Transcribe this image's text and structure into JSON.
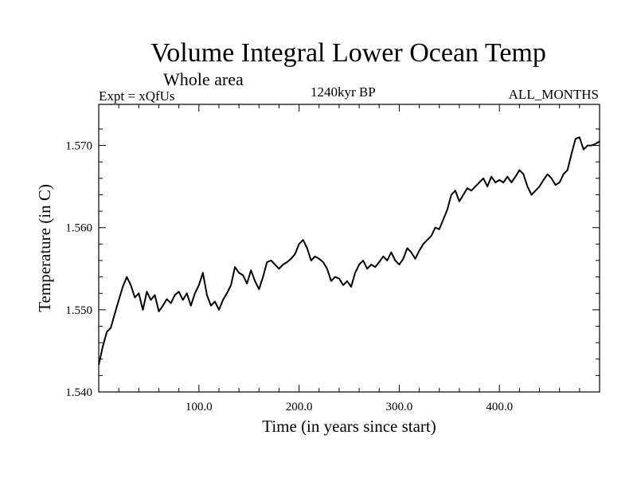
{
  "chart_data": {
    "type": "line",
    "title": "Volume Integral Lower Ocean Temp",
    "subtitle": "Whole area",
    "experiment_label": "Expt = xQfUs",
    "period_label": "1240kyr BP",
    "months_label": "ALL_MONTHS",
    "xlabel": "Time (in years since start)",
    "ylabel": "Temperature (in C)",
    "xlim": [
      0,
      500
    ],
    "ylim": [
      1.54,
      1.575
    ],
    "x_ticks": [
      100,
      200,
      300,
      400
    ],
    "x_tick_labels": [
      "100.0",
      "200.0",
      "300.0",
      "400.0"
    ],
    "y_ticks": [
      1.54,
      1.55,
      1.56,
      1.57
    ],
    "y_tick_labels": [
      "1.540",
      "1.550",
      "1.560",
      "1.570"
    ],
    "grid": false,
    "series": [
      {
        "name": "Volume Integral Lower Ocean Temp",
        "color": "#000000",
        "x": [
          0,
          4,
          8,
          12,
          16,
          20,
          24,
          28,
          32,
          36,
          40,
          44,
          48,
          52,
          56,
          60,
          64,
          68,
          72,
          76,
          80,
          84,
          88,
          92,
          96,
          100,
          104,
          108,
          112,
          116,
          120,
          124,
          128,
          132,
          136,
          140,
          144,
          148,
          152,
          156,
          160,
          164,
          168,
          172,
          176,
          180,
          184,
          188,
          192,
          196,
          200,
          204,
          208,
          212,
          216,
          220,
          224,
          228,
          232,
          236,
          240,
          244,
          248,
          252,
          256,
          260,
          264,
          268,
          272,
          276,
          280,
          284,
          288,
          292,
          296,
          300,
          304,
          308,
          312,
          316,
          320,
          324,
          328,
          332,
          336,
          340,
          344,
          348,
          352,
          356,
          360,
          364,
          368,
          372,
          376,
          380,
          384,
          388,
          392,
          396,
          400,
          404,
          408,
          412,
          416,
          420,
          424,
          428,
          432,
          436,
          440,
          444,
          448,
          452,
          456,
          460,
          464,
          468,
          472,
          476,
          480,
          484,
          488,
          492,
          496,
          500
        ],
        "values": [
          1.5433,
          1.5455,
          1.5473,
          1.5478,
          1.5495,
          1.5512,
          1.5528,
          1.554,
          1.553,
          1.5515,
          1.552,
          1.55,
          1.5522,
          1.5512,
          1.5518,
          1.5498,
          1.5505,
          1.5513,
          1.5508,
          1.5518,
          1.5522,
          1.5512,
          1.552,
          1.5505,
          1.552,
          1.553,
          1.5545,
          1.5518,
          1.5505,
          1.551,
          1.55,
          1.5512,
          1.552,
          1.553,
          1.5552,
          1.5545,
          1.5542,
          1.5532,
          1.5548,
          1.5535,
          1.5525,
          1.554,
          1.5558,
          1.556,
          1.5555,
          1.555,
          1.5555,
          1.5558,
          1.5562,
          1.5568,
          1.558,
          1.5585,
          1.5575,
          1.556,
          1.5565,
          1.5562,
          1.5558,
          1.555,
          1.5535,
          1.554,
          1.5538,
          1.553,
          1.5535,
          1.5528,
          1.5545,
          1.5555,
          1.556,
          1.555,
          1.5555,
          1.5552,
          1.5558,
          1.5565,
          1.556,
          1.557,
          1.556,
          1.5555,
          1.5562,
          1.5575,
          1.557,
          1.5562,
          1.5572,
          1.558,
          1.5585,
          1.559,
          1.56,
          1.5598,
          1.561,
          1.5622,
          1.564,
          1.5645,
          1.5632,
          1.564,
          1.5648,
          1.5645,
          1.565,
          1.5655,
          1.566,
          1.565,
          1.5662,
          1.5655,
          1.5658,
          1.5655,
          1.5662,
          1.5655,
          1.5662,
          1.567,
          1.5665,
          1.565,
          1.564,
          1.5645,
          1.565,
          1.5658,
          1.5665,
          1.566,
          1.5652,
          1.5655,
          1.5665,
          1.567,
          1.569,
          1.5708,
          1.571,
          1.5695,
          1.57,
          1.57,
          1.5702,
          1.5705
        ]
      }
    ]
  }
}
